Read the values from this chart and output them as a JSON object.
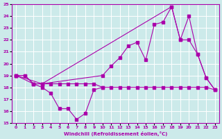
{
  "bg_color": "#cceaea",
  "grid_color": "#ffffff",
  "line_color": "#aa00aa",
  "xlabel": "Windchill (Refroidissement éolien,°C)",
  "xlim": [
    -0.5,
    23.5
  ],
  "ylim": [
    15,
    25
  ],
  "yticks": [
    15,
    16,
    17,
    18,
    19,
    20,
    21,
    22,
    23,
    24,
    25
  ],
  "xticks": [
    0,
    1,
    2,
    3,
    4,
    5,
    6,
    7,
    8,
    9,
    10,
    11,
    12,
    13,
    14,
    15,
    16,
    17,
    18,
    19,
    20,
    21,
    22,
    23
  ],
  "series_flat_x": [
    0,
    1,
    2,
    3,
    4,
    5,
    6,
    7,
    8,
    9,
    10,
    11,
    12,
    13,
    14,
    15,
    16,
    17,
    18,
    19,
    20,
    21,
    22,
    23
  ],
  "series_flat_y": [
    19.0,
    19.0,
    18.3,
    18.3,
    18.3,
    18.3,
    18.3,
    18.3,
    18.3,
    18.3,
    18.0,
    18.0,
    18.0,
    18.0,
    18.0,
    18.0,
    18.0,
    18.0,
    18.0,
    18.0,
    18.0,
    18.0,
    18.0,
    17.8
  ],
  "series_dip_x": [
    0,
    1,
    2,
    3,
    4,
    5,
    6,
    7,
    8,
    9,
    10
  ],
  "series_dip_y": [
    19.0,
    19.0,
    18.3,
    18.0,
    17.5,
    16.2,
    16.2,
    15.3,
    15.8,
    17.8,
    18.0
  ],
  "series_rise_x": [
    0,
    2,
    3,
    10,
    11,
    12,
    13,
    14,
    15,
    16,
    17,
    18,
    19,
    20,
    21,
    22,
    23
  ],
  "series_rise_y": [
    19.0,
    18.3,
    18.3,
    19.0,
    19.8,
    20.5,
    21.5,
    21.8,
    20.3,
    23.3,
    23.5,
    24.8,
    22.0,
    22.0,
    20.8,
    18.8,
    17.8
  ],
  "series_upper_x": [
    0,
    3,
    18,
    19,
    20,
    21,
    22,
    23
  ],
  "series_upper_y": [
    19.0,
    18.3,
    24.8,
    22.0,
    24.0,
    20.8,
    18.8,
    17.8
  ]
}
